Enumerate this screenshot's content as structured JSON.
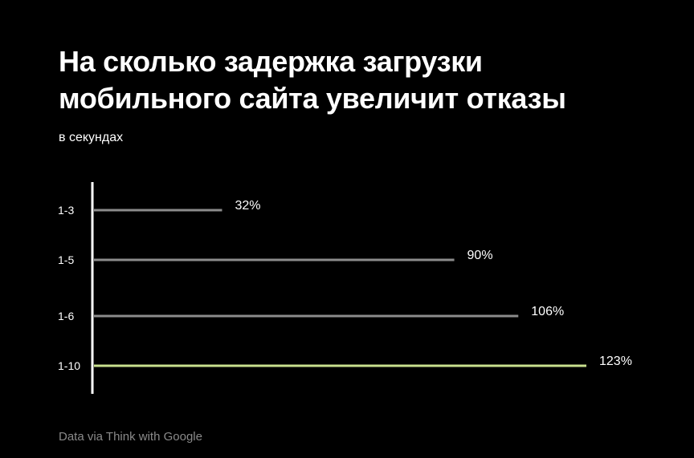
{
  "header": {
    "title_line1": "На сколько задержка загрузки",
    "title_line2": "мобильного сайта увеличит отказы",
    "subtitle": "в секундах"
  },
  "footer": {
    "source": "Data via Think with Google"
  },
  "colors": {
    "background": "#000000",
    "text": "#ffffff",
    "axis": "#ffffff",
    "bar_default": "#8c8c8c",
    "bar_highlight": "#c8e08e",
    "source_text": "#8a8a8a"
  },
  "chart_data": {
    "type": "bar",
    "orientation": "horizontal",
    "categories": [
      "1-3",
      "1-5",
      "1-6",
      "1-10"
    ],
    "values": [
      32,
      90,
      106,
      123
    ],
    "value_labels": [
      "32%",
      "90%",
      "106%",
      "123%"
    ],
    "highlighted_category": "1-10",
    "xlim": [
      0,
      123
    ],
    "grid": false,
    "legend": "none"
  }
}
